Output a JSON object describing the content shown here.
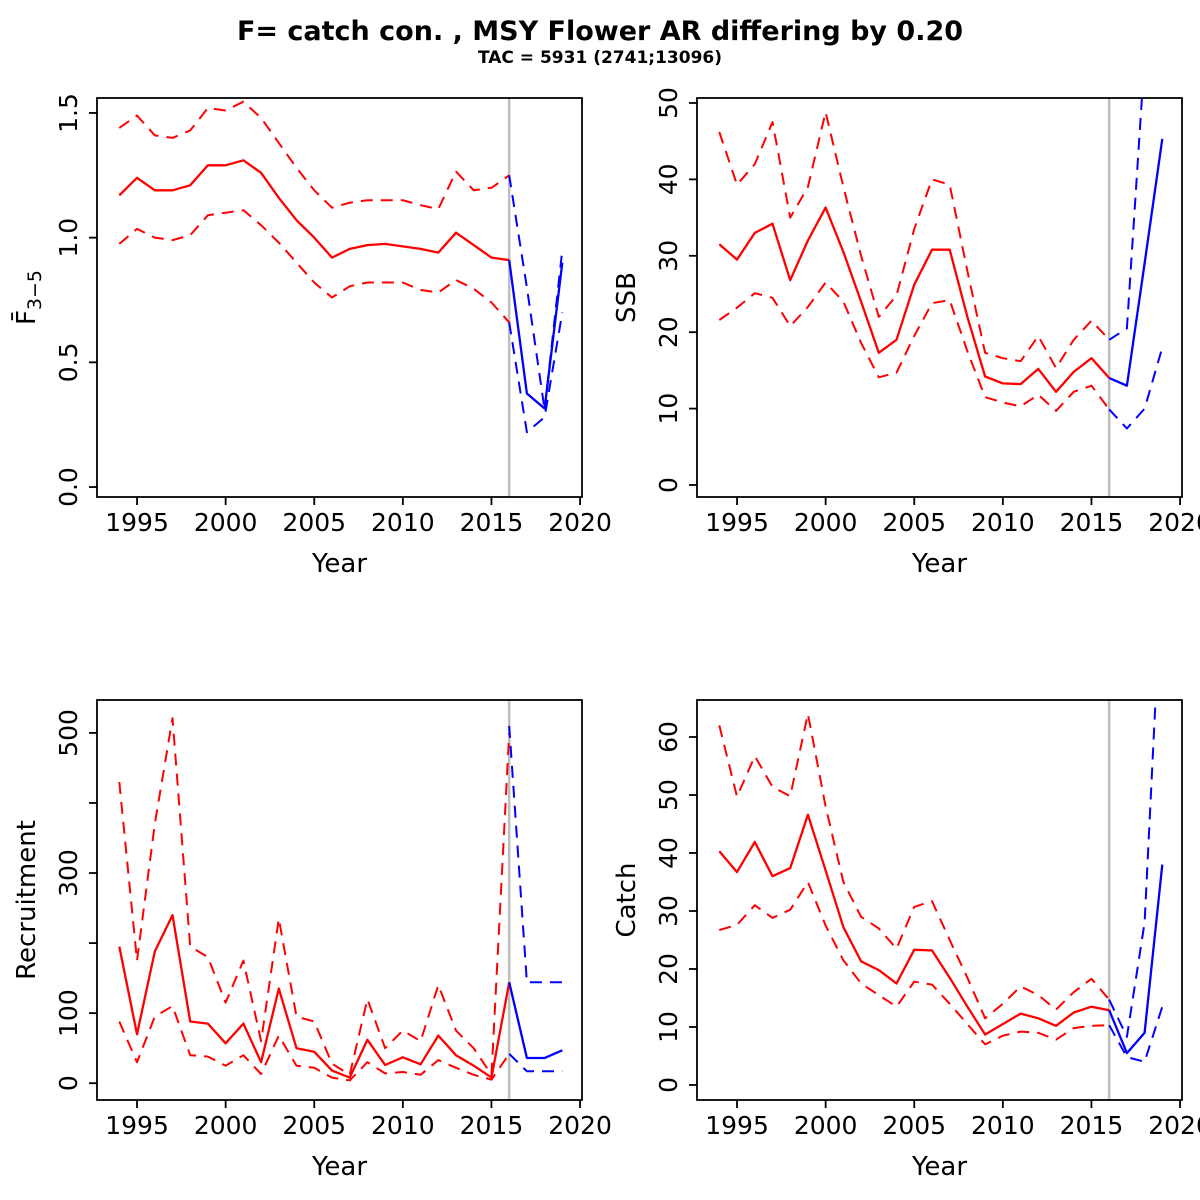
{
  "title": "F= catch con. , MSY Flower AR differing by 0.20",
  "subtitle": "TAC = 5931 (2741;13096)",
  "colors": {
    "historical": "#ff0000",
    "projection": "#0000ff",
    "divider": "#bdbdbd",
    "axis": "#000000"
  },
  "chart_data": [
    {
      "type": "line",
      "key": "fbar",
      "xlabel": "Year",
      "ylabel": "F̄3−5",
      "ylabel_parts": [
        {
          "text": "F̄",
          "sub": false
        },
        {
          "text": "3−5",
          "sub": true
        }
      ],
      "xlim": [
        1992.74,
        2020.11
      ],
      "ylim": [
        -0.04,
        1.56
      ],
      "divider_x": 2016,
      "xticks": {
        "values": [
          1995,
          2000,
          2005,
          2010,
          2015,
          2020
        ],
        "labels": [
          "1995",
          "2000",
          "2005",
          "2010",
          "2015",
          "2020"
        ]
      },
      "yticks": {
        "values": [
          0.0,
          0.5,
          1.0,
          1.5
        ],
        "labels": [
          "0.0",
          "0.5",
          "1.0",
          "1.5"
        ]
      },
      "years_historical": [
        1994,
        1995,
        1996,
        1997,
        1998,
        1999,
        2000,
        2001,
        2002,
        2003,
        2004,
        2005,
        2006,
        2007,
        2008,
        2009,
        2010,
        2011,
        2012,
        2013,
        2014,
        2015,
        2016
      ],
      "years_projection": [
        2016,
        2017,
        2018,
        2019
      ],
      "series": [
        {
          "name": "median-historical",
          "period": "historical",
          "style": "solid",
          "color": "historical",
          "values": [
            1.17,
            1.24,
            1.19,
            1.19,
            1.21,
            1.29,
            1.29,
            1.31,
            1.26,
            1.16,
            1.07,
            1.0,
            0.92,
            0.955,
            0.97,
            0.975,
            0.965,
            0.955,
            0.94,
            1.02,
            0.97,
            0.92,
            0.91
          ]
        },
        {
          "name": "ci-upper-historical",
          "period": "historical",
          "style": "dashed",
          "color": "historical",
          "values": [
            1.44,
            1.49,
            1.41,
            1.4,
            1.43,
            1.52,
            1.51,
            1.545,
            1.48,
            1.38,
            1.28,
            1.19,
            1.12,
            1.14,
            1.15,
            1.15,
            1.15,
            1.13,
            1.115,
            1.265,
            1.19,
            1.2,
            1.25
          ]
        },
        {
          "name": "ci-lower-historical",
          "period": "historical",
          "style": "dashed",
          "color": "historical",
          "values": [
            0.975,
            1.035,
            1.0,
            0.99,
            1.01,
            1.09,
            1.1,
            1.11,
            1.05,
            0.98,
            0.9,
            0.82,
            0.76,
            0.805,
            0.82,
            0.82,
            0.82,
            0.79,
            0.78,
            0.83,
            0.795,
            0.74,
            0.66
          ]
        },
        {
          "name": "ci-upper-projection",
          "period": "projection",
          "style": "dashed",
          "color": "projection",
          "values": [
            1.25,
            0.8,
            0.31,
            0.95
          ]
        },
        {
          "name": "ci-lower-projection",
          "period": "projection",
          "style": "dashed",
          "color": "projection",
          "values": [
            0.66,
            0.22,
            0.28,
            0.7
          ]
        },
        {
          "name": "median-projection",
          "period": "projection",
          "style": "solid",
          "color": "projection",
          "values": [
            0.91,
            0.375,
            0.315,
            0.9
          ]
        }
      ]
    },
    {
      "type": "line",
      "key": "ssb",
      "xlabel": "Year",
      "ylabel": "SSB",
      "ylabel_parts": [
        {
          "text": "SSB",
          "sub": false
        }
      ],
      "xlim": [
        1992.74,
        2020.11
      ],
      "ylim": [
        -1.57,
        50.65
      ],
      "divider_x": 2016,
      "xticks": {
        "values": [
          1995,
          2000,
          2005,
          2010,
          2015,
          2020
        ],
        "labels": [
          "1995",
          "2000",
          "2005",
          "2010",
          "2015",
          "2020"
        ]
      },
      "yticks": {
        "values": [
          0,
          10,
          20,
          30,
          40,
          50
        ],
        "labels": [
          "0",
          "10",
          "20",
          "30",
          "40",
          "50"
        ]
      },
      "years_historical": [
        1994,
        1995,
        1996,
        1997,
        1998,
        1999,
        2000,
        2001,
        2002,
        2003,
        2004,
        2005,
        2006,
        2007,
        2008,
        2009,
        2010,
        2011,
        2012,
        2013,
        2014,
        2015,
        2016
      ],
      "years_projection": [
        2016,
        2017,
        2018,
        2019
      ],
      "series": [
        {
          "name": "median-historical",
          "period": "historical",
          "style": "solid",
          "color": "historical",
          "values": [
            31.5,
            29.5,
            33,
            34.2,
            26.8,
            32,
            36.3,
            30.5,
            24,
            17.3,
            19,
            26.2,
            30.8,
            30.8,
            22,
            14.2,
            13.3,
            13.2,
            15.2,
            12.2,
            14.8,
            16.6,
            14
          ]
        },
        {
          "name": "ci-upper-historical",
          "period": "historical",
          "style": "dashed",
          "color": "historical",
          "values": [
            46.2,
            39.3,
            42,
            47.5,
            35,
            39,
            48.8,
            39,
            30,
            22,
            24.8,
            33.5,
            40,
            39.3,
            28,
            17.3,
            16.6,
            16.2,
            19.5,
            15.3,
            19,
            21.5,
            19
          ]
        },
        {
          "name": "ci-lower-historical",
          "period": "historical",
          "style": "dashed",
          "color": "historical",
          "values": [
            21.6,
            23.2,
            25.1,
            24.5,
            20.8,
            23.3,
            26.5,
            24,
            18.6,
            14.1,
            14.7,
            19.5,
            23.8,
            24.2,
            17.5,
            11.5,
            10.8,
            10.3,
            11.8,
            9.7,
            12.2,
            13,
            9.9
          ]
        },
        {
          "name": "ci-upper-projection",
          "period": "projection",
          "style": "dashed",
          "color": "projection",
          "values": [
            19,
            20.5,
            56,
            60
          ]
        },
        {
          "name": "ci-lower-projection",
          "period": "projection",
          "style": "dashed",
          "color": "projection",
          "values": [
            9.9,
            7.4,
            10,
            18
          ]
        },
        {
          "name": "median-projection",
          "period": "projection",
          "style": "solid",
          "color": "projection",
          "values": [
            14,
            13,
            29,
            45.3
          ]
        }
      ]
    },
    {
      "type": "line",
      "key": "recruitment",
      "xlabel": "Year",
      "ylabel": "Recruitment",
      "ylabel_parts": [
        {
          "text": "Recruitment",
          "sub": false
        }
      ],
      "xlim": [
        1992.74,
        2020.11
      ],
      "ylim": [
        -24,
        547
      ],
      "divider_x": 2016,
      "xticks": {
        "values": [
          1995,
          2000,
          2005,
          2010,
          2015,
          2020
        ],
        "labels": [
          "1995",
          "2000",
          "2005",
          "2010",
          "2015",
          "2020"
        ]
      },
      "yticks": {
        "values": [
          0,
          100,
          200,
          300,
          400,
          500
        ],
        "labels": [
          "0",
          "100",
          "",
          "300",
          "",
          "500"
        ]
      },
      "years_historical": [
        1994,
        1995,
        1996,
        1997,
        1998,
        1999,
        2000,
        2001,
        2002,
        2003,
        2004,
        2005,
        2006,
        2007,
        2008,
        2009,
        2010,
        2011,
        2012,
        2013,
        2014,
        2015,
        2016
      ],
      "years_projection": [
        2016,
        2017,
        2018,
        2019
      ],
      "series": [
        {
          "name": "median-historical",
          "period": "historical",
          "style": "solid",
          "color": "historical",
          "values": [
            195,
            70,
            188,
            240,
            88,
            85,
            57,
            85,
            30,
            135,
            50,
            45,
            18,
            8,
            62,
            26,
            37,
            27,
            68,
            40,
            25,
            8,
            144
          ]
        },
        {
          "name": "ci-upper-historical",
          "period": "historical",
          "style": "dashed",
          "color": "historical",
          "values": [
            430,
            175,
            370,
            521,
            195,
            180,
            115,
            175,
            60,
            235,
            95,
            88,
            28,
            12,
            120,
            50,
            75,
            60,
            140,
            75,
            50,
            12,
            500
          ]
        },
        {
          "name": "ci-lower-historical",
          "period": "historical",
          "style": "dashed",
          "color": "historical",
          "values": [
            88,
            30,
            95,
            110,
            40,
            38,
            25,
            40,
            13,
            68,
            25,
            22,
            8,
            4,
            30,
            14,
            16,
            12,
            33,
            22,
            12,
            5,
            42
          ]
        },
        {
          "name": "ci-upper-projection",
          "period": "projection",
          "style": "dashed",
          "color": "projection",
          "values": [
            510,
            144,
            144,
            144
          ]
        },
        {
          "name": "ci-lower-projection",
          "period": "projection",
          "style": "dashed",
          "color": "projection",
          "values": [
            42,
            17,
            17,
            17
          ]
        },
        {
          "name": "median-projection",
          "period": "projection",
          "style": "solid",
          "color": "projection",
          "values": [
            144,
            36,
            36,
            47
          ]
        }
      ]
    },
    {
      "type": "line",
      "key": "catch",
      "xlabel": "Year",
      "ylabel": "Catch",
      "ylabel_parts": [
        {
          "text": "Catch",
          "sub": false
        }
      ],
      "xlim": [
        1992.74,
        2020.11
      ],
      "ylim": [
        -2.59,
        66.38
      ],
      "divider_x": 2016,
      "xticks": {
        "values": [
          1995,
          2000,
          2005,
          2010,
          2015,
          2020
        ],
        "labels": [
          "1995",
          "2000",
          "2005",
          "2010",
          "2015",
          "2020"
        ]
      },
      "yticks": {
        "values": [
          0,
          10,
          20,
          30,
          40,
          50,
          60
        ],
        "labels": [
          "0",
          "10",
          "20",
          "30",
          "40",
          "50",
          "60"
        ]
      },
      "years_historical": [
        1994,
        1995,
        1996,
        1997,
        1998,
        1999,
        2000,
        2001,
        2002,
        2003,
        2004,
        2005,
        2006,
        2007,
        2008,
        2009,
        2010,
        2011,
        2012,
        2013,
        2014,
        2015,
        2016
      ],
      "years_projection": [
        2016,
        2017,
        2018,
        2019
      ],
      "series": [
        {
          "name": "median-historical",
          "period": "historical",
          "style": "solid",
          "color": "historical",
          "values": [
            40.3,
            36.7,
            41.9,
            36.0,
            37.4,
            46.6,
            37,
            27.2,
            21.3,
            19.8,
            17.5,
            23.3,
            23.2,
            18.5,
            13.5,
            8.7,
            10.5,
            12.3,
            11.5,
            10.2,
            12.5,
            13.5,
            12.9
          ]
        },
        {
          "name": "ci-upper-historical",
          "period": "historical",
          "style": "dashed",
          "color": "historical",
          "values": [
            62,
            49.7,
            56.7,
            51.4,
            49.8,
            64,
            48,
            35,
            29,
            27,
            23.5,
            30.7,
            31.7,
            25,
            18.5,
            11.5,
            14,
            17,
            15.5,
            13,
            16,
            18.3,
            14.7
          ]
        },
        {
          "name": "ci-lower-historical",
          "period": "historical",
          "style": "dashed",
          "color": "historical",
          "values": [
            26.7,
            27.6,
            31,
            28.8,
            30.2,
            35,
            27.5,
            21.5,
            17.5,
            15.5,
            13.5,
            17.8,
            17.3,
            14,
            10.5,
            7,
            8.5,
            9.2,
            9,
            7.8,
            9.8,
            10.2,
            10.3
          ]
        },
        {
          "name": "ci-upper-projection",
          "period": "projection",
          "style": "dashed",
          "color": "projection",
          "values": [
            14.7,
            8.3,
            28,
            90
          ]
        },
        {
          "name": "ci-lower-projection",
          "period": "projection",
          "style": "dashed",
          "color": "projection",
          "values": [
            10.3,
            4.8,
            4.0,
            13.5
          ]
        },
        {
          "name": "median-projection",
          "period": "projection",
          "style": "solid",
          "color": "projection",
          "values": [
            12.9,
            5.5,
            9,
            38
          ]
        }
      ]
    }
  ]
}
